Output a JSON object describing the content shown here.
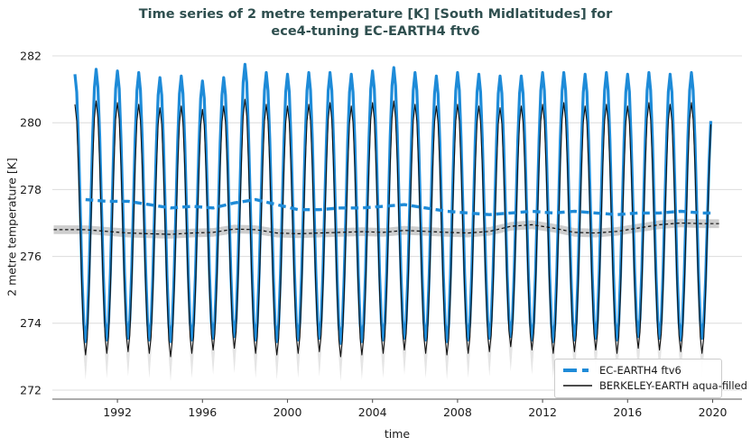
{
  "title": {
    "line1": "Time series of 2 metre temperature [K] [South Midlatitudes] for",
    "line2": "ece4-tuning EC-EARTH4 ftv6"
  },
  "colors": {
    "title_text": "#2F4F4F",
    "tick_text": "#1a1a1a",
    "grid": "#dcdcdc",
    "spine": "#5a5a5a",
    "ec_blue": "#1e8bd8",
    "berkeley_black": "#111111",
    "band_seasonal": "#cfcfcf",
    "band_mean": "#bdbdbd"
  },
  "axes": {
    "xlabel": "time",
    "ylabel": "2 metre temperature [K]",
    "yticks": [
      272,
      274,
      276,
      278,
      280,
      282
    ],
    "xticks": [
      1992,
      1996,
      2000,
      2004,
      2008,
      2012,
      2016,
      2020
    ],
    "ylim": [
      271.7,
      282.3
    ],
    "xlim": [
      1988.9,
      2021.3
    ],
    "grid": "horizontal-only"
  },
  "chart_data": {
    "type": "line",
    "title": "Time series of 2 metre temperature [K] [South Midlatitudes] for ece4-tuning EC-EARTH4 ftv6",
    "xlabel": "time",
    "ylabel": "2 metre temperature [K]",
    "legend_position": "lower right",
    "x_resolution": "monthly seasonal cycle, January maxima / July minima (Southern Hemisphere)",
    "years": [
      1990,
      1991,
      1992,
      1993,
      1994,
      1995,
      1996,
      1997,
      1998,
      1999,
      2000,
      2001,
      2002,
      2003,
      2004,
      2005,
      2006,
      2007,
      2008,
      2009,
      2010,
      2011,
      2012,
      2013,
      2014,
      2015,
      2016,
      2017,
      2018,
      2019
    ],
    "series": [
      {
        "name": "EC-EARTH4 ftv6",
        "style": "thick solid seasonal line + thick dashed annual mean",
        "jan_peak": [
          281.45,
          281.6,
          281.55,
          281.5,
          281.35,
          281.4,
          281.25,
          281.35,
          281.75,
          281.5,
          281.45,
          281.5,
          281.5,
          281.45,
          281.55,
          281.65,
          281.5,
          281.4,
          281.5,
          281.45,
          281.4,
          281.4,
          281.5,
          281.5,
          281.45,
          281.5,
          281.45,
          281.5,
          281.45,
          281.5
        ],
        "jul_trough": [
          273.45,
          273.5,
          273.55,
          273.5,
          273.45,
          273.5,
          273.55,
          273.6,
          273.5,
          273.45,
          273.5,
          273.55,
          273.4,
          273.45,
          273.5,
          273.55,
          273.5,
          273.45,
          273.5,
          273.55,
          273.6,
          273.5,
          273.45,
          273.5,
          273.55,
          273.5,
          273.6,
          273.55,
          273.5,
          273.55
        ],
        "annual_mean": [
          277.7,
          277.65,
          277.65,
          277.55,
          277.45,
          277.5,
          277.45,
          277.6,
          277.7,
          277.55,
          277.4,
          277.4,
          277.45,
          277.45,
          277.5,
          277.55,
          277.45,
          277.35,
          277.3,
          277.25,
          277.3,
          277.35,
          277.3,
          277.35,
          277.3,
          277.25,
          277.3,
          277.3,
          277.35,
          277.3
        ],
        "end_next_peak": 280.6,
        "end_value": 280.05
      },
      {
        "name": "BERKELEY-EARTH aqua-filled",
        "style": "thin solid seasonal line with gray uncertainty band + thin dashed annual mean with gray band",
        "jan_peak": [
          280.55,
          280.65,
          280.6,
          280.55,
          280.45,
          280.5,
          280.4,
          280.5,
          280.7,
          280.55,
          280.5,
          280.55,
          280.6,
          280.5,
          280.6,
          280.65,
          280.55,
          280.5,
          280.55,
          280.5,
          280.45,
          280.5,
          280.55,
          280.6,
          280.5,
          280.55,
          280.5,
          280.6,
          280.55,
          280.6
        ],
        "jul_trough": [
          273.05,
          273.1,
          273.15,
          273.1,
          273.0,
          273.1,
          273.2,
          273.25,
          273.1,
          273.05,
          273.1,
          273.15,
          273.0,
          273.05,
          273.1,
          273.2,
          273.1,
          273.05,
          273.1,
          273.15,
          273.3,
          273.2,
          273.1,
          273.15,
          273.2,
          273.1,
          273.25,
          273.2,
          273.15,
          273.1
        ],
        "annual_mean": [
          276.8,
          276.75,
          276.7,
          276.68,
          276.66,
          276.7,
          276.72,
          276.82,
          276.8,
          276.7,
          276.68,
          276.7,
          276.72,
          276.74,
          276.72,
          276.78,
          276.75,
          276.72,
          276.7,
          276.75,
          276.9,
          276.95,
          276.85,
          276.72,
          276.7,
          276.75,
          276.85,
          276.95,
          277.0,
          276.98
        ],
        "mean_band_halfwidth": 0.13,
        "seasonal_band_trough_extra_below": 0.62,
        "end_next_peak": 280.4,
        "end_value": 279.95
      }
    ],
    "series_end_time": 2019.917
  },
  "legend": {
    "entries": [
      {
        "label": "EC-EARTH4 ftv6"
      },
      {
        "label": "BERKELEY-EARTH aqua-filled"
      }
    ]
  }
}
